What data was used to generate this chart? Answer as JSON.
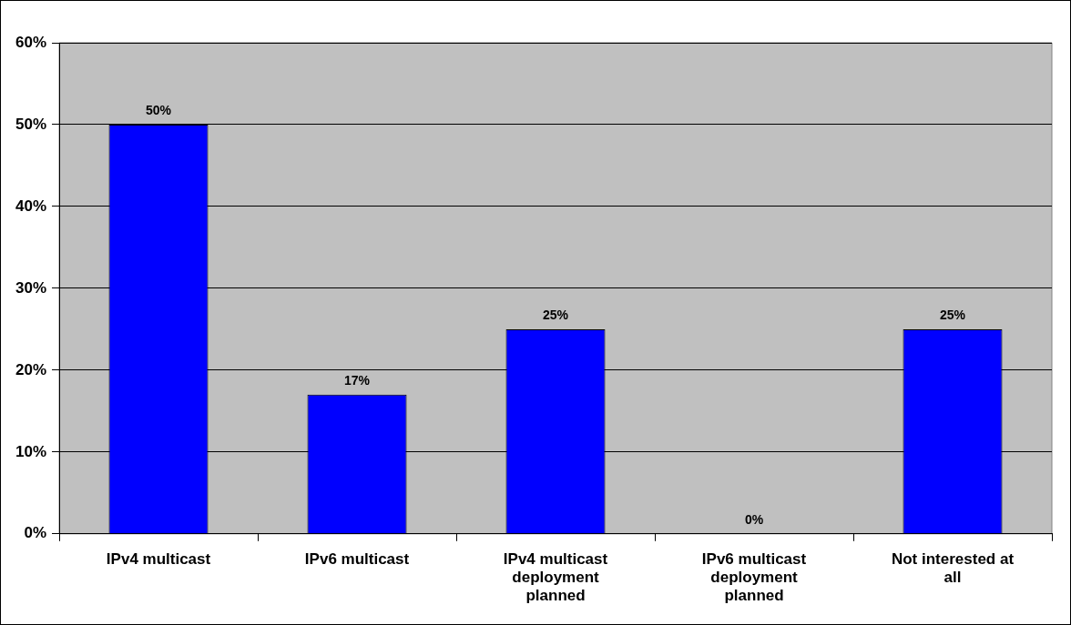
{
  "chart_data": {
    "type": "bar",
    "categories": [
      "IPv4 multicast",
      "IPv6 multicast",
      "IPv4 multicast deployment planned",
      "IPv6 multicast deployment planned",
      "Not interested at all"
    ],
    "values": [
      50,
      17,
      25,
      0,
      25
    ],
    "value_labels": [
      "50%",
      "17%",
      "25%",
      "0%",
      "25%"
    ],
    "color": "#0000ff",
    "ylim": [
      0,
      60
    ],
    "yticks": [
      {
        "value": 0,
        "label": "0%"
      },
      {
        "value": 10,
        "label": "10%"
      },
      {
        "value": 20,
        "label": "20%"
      },
      {
        "value": 30,
        "label": "30%"
      },
      {
        "value": 40,
        "label": "40%"
      },
      {
        "value": 50,
        "label": "50%"
      },
      {
        "value": 60,
        "label": "60%"
      }
    ],
    "grid": "y",
    "legend": false
  }
}
